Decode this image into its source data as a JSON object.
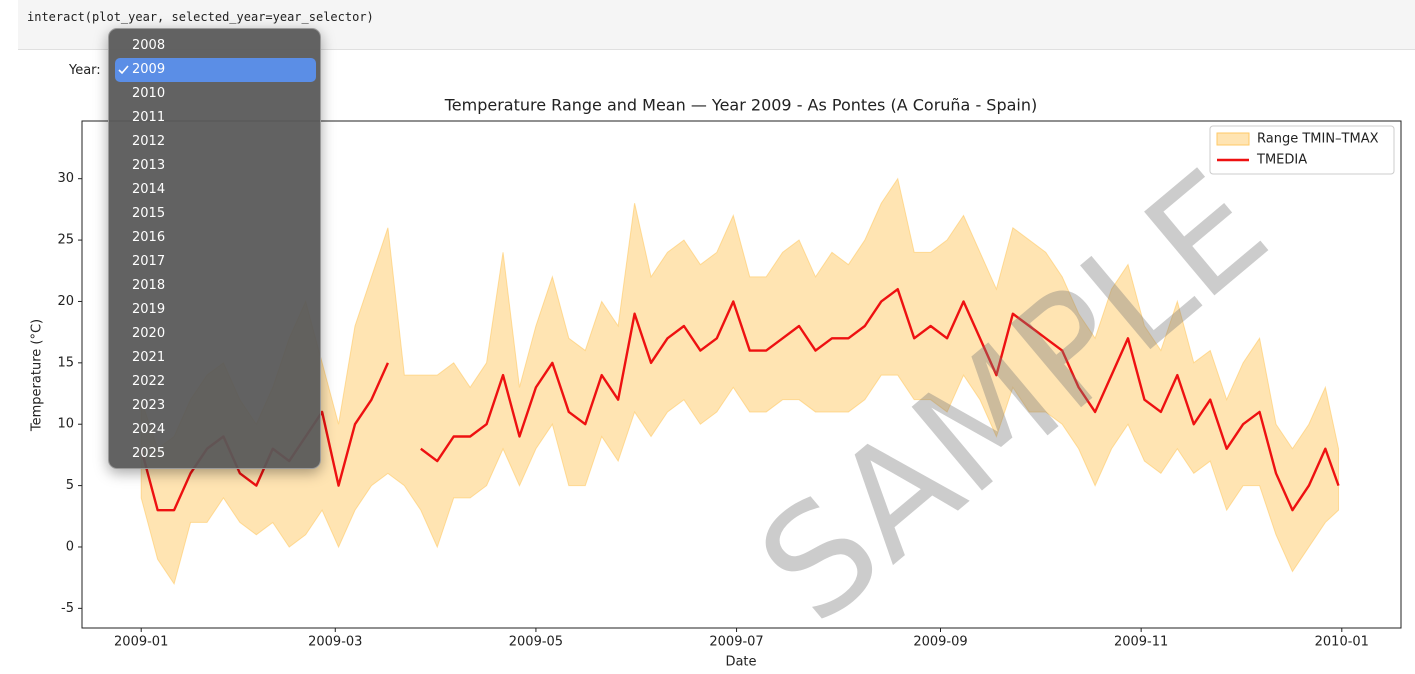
{
  "code": "interact(plot_year, selected_year=year_selector)",
  "year_widget": {
    "label": "Year:",
    "options": [
      {
        "label": "2008"
      },
      {
        "label": "2009",
        "selected": true
      },
      {
        "label": "2010"
      },
      {
        "label": "2011"
      },
      {
        "label": "2012"
      },
      {
        "label": "2013"
      },
      {
        "label": "2014"
      },
      {
        "label": "2015"
      },
      {
        "label": "2016"
      },
      {
        "label": "2017"
      },
      {
        "label": "2018"
      },
      {
        "label": "2019"
      },
      {
        "label": "2020"
      },
      {
        "label": "2021"
      },
      {
        "label": "2022"
      },
      {
        "label": "2023"
      },
      {
        "label": "2024"
      },
      {
        "label": "2025"
      }
    ]
  },
  "chart_data": {
    "type": "line",
    "title": "Temperature Range and Mean — Year 2009 - As Pontes (A Coruña - Spain)",
    "x_label": "Date",
    "y_label": "Temperature (°C)",
    "watermark": "SAMPLE",
    "legend": "upper right",
    "grid": false,
    "xlim": [
      -18,
      383
    ],
    "ylim": [
      -6.6,
      34.7
    ],
    "xticks": [
      {
        "value": 0,
        "label": "2009-01"
      },
      {
        "value": 59,
        "label": "2009-03"
      },
      {
        "value": 120,
        "label": "2009-05"
      },
      {
        "value": 181,
        "label": "2009-07"
      },
      {
        "value": 243,
        "label": "2009-09"
      },
      {
        "value": 304,
        "label": "2009-11"
      },
      {
        "value": 365,
        "label": "2010-01"
      }
    ],
    "yticks": [
      -5,
      0,
      5,
      10,
      15,
      20,
      25,
      30
    ],
    "x": [
      0,
      5,
      10,
      15,
      20,
      25,
      30,
      35,
      40,
      45,
      50,
      55,
      60,
      65,
      70,
      75,
      80,
      85,
      90,
      95,
      100,
      105,
      110,
      115,
      120,
      125,
      130,
      135,
      140,
      145,
      150,
      155,
      160,
      165,
      170,
      175,
      180,
      185,
      190,
      195,
      200,
      205,
      210,
      215,
      220,
      225,
      230,
      235,
      240,
      245,
      250,
      255,
      260,
      265,
      270,
      275,
      280,
      285,
      290,
      295,
      300,
      305,
      310,
      315,
      320,
      325,
      330,
      335,
      340,
      345,
      350,
      355,
      360,
      364
    ],
    "series": [
      {
        "name": "Range TMIN–TMAX",
        "type": "band",
        "color": "#ffc966",
        "lower": [
          4,
          -1,
          -3,
          2,
          2,
          4,
          2,
          1,
          2,
          0,
          1,
          3,
          0,
          3,
          5,
          6,
          5,
          3,
          0,
          4,
          4,
          5,
          8,
          5,
          8,
          10,
          5,
          5,
          9,
          7,
          11,
          9,
          11,
          12,
          10,
          11,
          13,
          11,
          11,
          12,
          12,
          11,
          11,
          11,
          12,
          14,
          14,
          12,
          12,
          11,
          14,
          12,
          9,
          13,
          11,
          11,
          10,
          8,
          5,
          8,
          10,
          7,
          6,
          8,
          6,
          7,
          3,
          5,
          5,
          1,
          -2,
          0,
          2,
          3
        ],
        "upper": [
          12,
          8,
          9,
          12,
          14,
          15,
          12,
          10,
          13,
          17,
          20,
          15,
          10,
          18,
          22,
          26,
          14,
          14,
          14,
          15,
          13,
          15,
          24,
          13,
          18,
          22,
          17,
          16,
          20,
          18,
          28,
          22,
          24,
          25,
          23,
          24,
          27,
          22,
          22,
          24,
          25,
          22,
          24,
          23,
          25,
          28,
          30,
          24,
          24,
          25,
          27,
          24,
          21,
          26,
          25,
          24,
          22,
          19,
          17,
          21,
          23,
          18,
          16,
          20,
          15,
          16,
          12,
          15,
          17,
          10,
          8,
          10,
          13,
          8
        ]
      },
      {
        "name": "TMEDIA",
        "type": "line",
        "color": "#ee1111",
        "values": [
          8,
          3,
          3,
          6,
          8,
          9,
          6,
          5,
          8,
          7,
          9,
          11,
          5,
          10,
          12,
          15,
          null,
          8,
          7,
          9,
          9,
          10,
          14,
          9,
          13,
          15,
          11,
          10,
          14,
          12,
          19,
          15,
          17,
          18,
          16,
          17,
          20,
          16,
          16,
          17,
          18,
          16,
          17,
          17,
          18,
          20,
          21,
          17,
          18,
          17,
          20,
          17,
          14,
          19,
          18,
          17,
          16,
          13,
          11,
          14,
          17,
          12,
          11,
          14,
          10,
          12,
          8,
          10,
          11,
          6,
          3,
          5,
          8,
          5
        ]
      }
    ]
  }
}
